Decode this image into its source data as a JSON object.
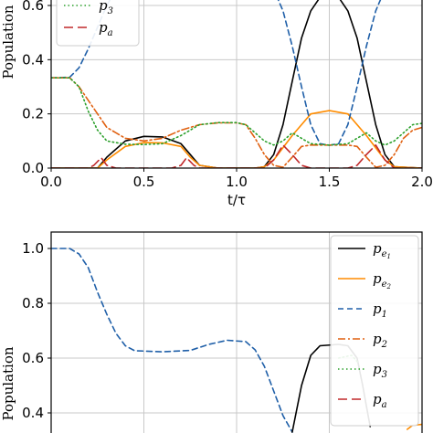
{
  "colors": {
    "pe1": "#000000",
    "pe2": "#ff8c00",
    "p1": "#1f5fa8",
    "p2": "#e06010",
    "p3": "#2ca02c",
    "pa": "#c0282a",
    "grid": "#c8c8c8"
  },
  "chart_data": [
    {
      "type": "line",
      "xlabel": "t/τ",
      "ylabel": "Population",
      "xlim": [
        0,
        2
      ],
      "ylim": [
        0,
        0.65
      ],
      "xticks": [
        "0.0",
        "0.5",
        "1.0",
        "1.5",
        "2.0"
      ],
      "yticks": [
        "0.0",
        "0.2",
        "0.4",
        "0.6"
      ],
      "grid": true,
      "legend": {
        "placement": "top-left",
        "entries": [
          {
            "key": "p3",
            "base": "p",
            "sub": "3"
          },
          {
            "key": "pa",
            "base": "p",
            "sub": "a"
          }
        ]
      },
      "series": [
        {
          "key": "pe1",
          "name": "p_e1",
          "style": "solid",
          "points": [
            [
              0,
              0
            ],
            [
              0.25,
              0
            ],
            [
              0.3,
              0.04
            ],
            [
              0.4,
              0.1
            ],
            [
              0.5,
              0.117
            ],
            [
              0.6,
              0.115
            ],
            [
              0.7,
              0.09
            ],
            [
              0.75,
              0.05
            ],
            [
              0.8,
              0.01
            ],
            [
              0.9,
              0
            ],
            [
              1.1,
              0
            ],
            [
              1.15,
              0.005
            ],
            [
              1.2,
              0.05
            ],
            [
              1.25,
              0.16
            ],
            [
              1.3,
              0.32
            ],
            [
              1.35,
              0.48
            ],
            [
              1.4,
              0.58
            ],
            [
              1.45,
              0.63
            ],
            [
              1.5,
              0.64
            ],
            [
              1.55,
              0.63
            ],
            [
              1.6,
              0.58
            ],
            [
              1.65,
              0.48
            ],
            [
              1.7,
              0.32
            ],
            [
              1.75,
              0.16
            ],
            [
              1.8,
              0.05
            ],
            [
              1.85,
              0.005
            ],
            [
              2,
              0
            ]
          ]
        },
        {
          "key": "pe2",
          "name": "p_e2",
          "style": "solid",
          "points": [
            [
              0,
              0
            ],
            [
              0.25,
              0
            ],
            [
              0.3,
              0.03
            ],
            [
              0.4,
              0.08
            ],
            [
              0.5,
              0.094
            ],
            [
              0.6,
              0.093
            ],
            [
              0.7,
              0.08
            ],
            [
              0.75,
              0.04
            ],
            [
              0.8,
              0.01
            ],
            [
              0.9,
              0
            ],
            [
              1.1,
              0
            ],
            [
              1.15,
              0.005
            ],
            [
              1.2,
              0.03
            ],
            [
              1.3,
              0.12
            ],
            [
              1.4,
              0.2
            ],
            [
              1.5,
              0.212
            ],
            [
              1.6,
              0.2
            ],
            [
              1.7,
              0.12
            ],
            [
              1.8,
              0.03
            ],
            [
              1.85,
              0.005
            ],
            [
              2,
              0
            ]
          ]
        },
        {
          "key": "p1",
          "name": "p_1",
          "style": "dashed",
          "points": [
            [
              0,
              0.333
            ],
            [
              0.1,
              0.335
            ],
            [
              0.15,
              0.37
            ],
            [
              0.2,
              0.44
            ],
            [
              0.25,
              0.52
            ],
            [
              0.3,
              0.6
            ],
            [
              0.35,
              0.66
            ],
            [
              1.2,
              0.66
            ],
            [
              1.25,
              0.58
            ],
            [
              1.3,
              0.45
            ],
            [
              1.35,
              0.3
            ],
            [
              1.4,
              0.16
            ],
            [
              1.45,
              0.09
            ],
            [
              1.5,
              0.084
            ],
            [
              1.55,
              0.09
            ],
            [
              1.6,
              0.16
            ],
            [
              1.65,
              0.3
            ],
            [
              1.7,
              0.45
            ],
            [
              1.75,
              0.58
            ],
            [
              1.8,
              0.66
            ]
          ]
        },
        {
          "key": "p2",
          "name": "p_2",
          "style": "dashdot",
          "points": [
            [
              0,
              0.333
            ],
            [
              0.1,
              0.333
            ],
            [
              0.15,
              0.3
            ],
            [
              0.2,
              0.25
            ],
            [
              0.25,
              0.2
            ],
            [
              0.3,
              0.15
            ],
            [
              0.4,
              0.11
            ],
            [
              0.5,
              0.1
            ],
            [
              0.6,
              0.11
            ],
            [
              0.7,
              0.14
            ],
            [
              0.8,
              0.16
            ],
            [
              0.9,
              0.167
            ],
            [
              1.0,
              0.167
            ],
            [
              1.05,
              0.16
            ],
            [
              1.1,
              0.11
            ],
            [
              1.15,
              0.05
            ],
            [
              1.2,
              0.01
            ],
            [
              1.25,
              0.003
            ],
            [
              1.3,
              0.04
            ],
            [
              1.35,
              0.08
            ],
            [
              1.4,
              0.085
            ],
            [
              1.5,
              0.085
            ],
            [
              1.6,
              0.085
            ],
            [
              1.65,
              0.08
            ],
            [
              1.7,
              0.04
            ],
            [
              1.75,
              0.003
            ],
            [
              1.8,
              0.01
            ],
            [
              1.85,
              0.05
            ],
            [
              1.9,
              0.11
            ],
            [
              1.95,
              0.14
            ],
            [
              2,
              0.15
            ]
          ]
        },
        {
          "key": "p3",
          "name": "p_3",
          "style": "dotted",
          "points": [
            [
              0,
              0.333
            ],
            [
              0.1,
              0.333
            ],
            [
              0.15,
              0.3
            ],
            [
              0.2,
              0.21
            ],
            [
              0.25,
              0.14
            ],
            [
              0.3,
              0.1
            ],
            [
              0.4,
              0.088
            ],
            [
              0.5,
              0.087
            ],
            [
              0.6,
              0.09
            ],
            [
              0.7,
              0.12
            ],
            [
              0.8,
              0.16
            ],
            [
              0.9,
              0.168
            ],
            [
              1.0,
              0.168
            ],
            [
              1.05,
              0.16
            ],
            [
              1.1,
              0.13
            ],
            [
              1.15,
              0.1
            ],
            [
              1.2,
              0.085
            ],
            [
              1.25,
              0.1
            ],
            [
              1.3,
              0.13
            ],
            [
              1.35,
              0.11
            ],
            [
              1.4,
              0.09
            ],
            [
              1.5,
              0.085
            ],
            [
              1.6,
              0.09
            ],
            [
              1.65,
              0.11
            ],
            [
              1.7,
              0.13
            ],
            [
              1.75,
              0.1
            ],
            [
              1.8,
              0.085
            ],
            [
              1.85,
              0.1
            ],
            [
              1.9,
              0.13
            ],
            [
              1.95,
              0.16
            ],
            [
              2,
              0.165
            ]
          ]
        },
        {
          "key": "pa",
          "name": "p_a",
          "style": "longdash",
          "points": [
            [
              0,
              0
            ],
            [
              0.2,
              0
            ],
            [
              0.23,
              0.01
            ],
            [
              0.27,
              0.038
            ],
            [
              0.3,
              0.01
            ],
            [
              0.35,
              0
            ],
            [
              0.65,
              0
            ],
            [
              0.7,
              0.01
            ],
            [
              0.73,
              0.038
            ],
            [
              0.77,
              0.01
            ],
            [
              0.8,
              0
            ],
            [
              1.15,
              0
            ],
            [
              1.2,
              0.03
            ],
            [
              1.25,
              0.085
            ],
            [
              1.3,
              0.05
            ],
            [
              1.35,
              0.01
            ],
            [
              1.4,
              0
            ],
            [
              1.6,
              0
            ],
            [
              1.65,
              0.01
            ],
            [
              1.7,
              0.05
            ],
            [
              1.75,
              0.085
            ],
            [
              1.8,
              0.03
            ],
            [
              1.85,
              0
            ],
            [
              2,
              0
            ]
          ]
        }
      ]
    },
    {
      "type": "line",
      "xlabel": "",
      "ylabel": "Population",
      "xlim": [
        0,
        2
      ],
      "ylim": [
        0.35,
        1.1
      ],
      "yticks": [
        "0.4",
        "0.6",
        "0.8",
        "1.0"
      ],
      "grid": true,
      "legend": {
        "placement": "top-right",
        "entries": [
          {
            "key": "pe1",
            "base": "p",
            "sub": "e",
            "subsub": "1"
          },
          {
            "key": "pe2",
            "base": "p",
            "sub": "e",
            "subsub": "2"
          },
          {
            "key": "p1",
            "base": "p",
            "sub": "1"
          },
          {
            "key": "p2",
            "base": "p",
            "sub": "2"
          },
          {
            "key": "p3",
            "base": "p",
            "sub": "3"
          },
          {
            "key": "pa",
            "base": "p",
            "sub": "a"
          }
        ]
      },
      "series": [
        {
          "key": "p1",
          "name": "p_1",
          "style": "dashed",
          "points": [
            [
              0,
              1.0
            ],
            [
              0.1,
              1.0
            ],
            [
              0.15,
              0.98
            ],
            [
              0.2,
              0.93
            ],
            [
              0.25,
              0.84
            ],
            [
              0.3,
              0.76
            ],
            [
              0.35,
              0.69
            ],
            [
              0.4,
              0.645
            ],
            [
              0.45,
              0.627
            ],
            [
              0.6,
              0.623
            ],
            [
              0.75,
              0.628
            ],
            [
              0.85,
              0.65
            ],
            [
              0.95,
              0.665
            ],
            [
              1.05,
              0.66
            ],
            [
              1.1,
              0.63
            ],
            [
              1.15,
              0.57
            ],
            [
              1.2,
              0.48
            ],
            [
              1.25,
              0.39
            ],
            [
              1.3,
              0.33
            ]
          ]
        },
        {
          "key": "pe1",
          "name": "p_e1",
          "style": "solid",
          "points": [
            [
              1.3,
              0.33
            ],
            [
              1.35,
              0.5
            ],
            [
              1.4,
              0.61
            ],
            [
              1.45,
              0.645
            ],
            [
              1.55,
              0.65
            ],
            [
              1.6,
              0.645
            ],
            [
              1.65,
              0.6
            ],
            [
              1.68,
              0.5
            ],
            [
              1.72,
              0.35
            ]
          ]
        },
        {
          "key": "pe2",
          "name": "p_e2",
          "style": "solid",
          "points": [
            [
              1.92,
              0.34
            ],
            [
              1.95,
              0.355
            ],
            [
              2,
              0.358
            ]
          ]
        },
        {
          "key": "p3",
          "name": "p_3",
          "style": "dotted",
          "points": [
            [
              1.55,
              0.6
            ],
            [
              1.62,
              0.61
            ],
            [
              1.66,
              0.58
            ]
          ]
        }
      ]
    }
  ]
}
